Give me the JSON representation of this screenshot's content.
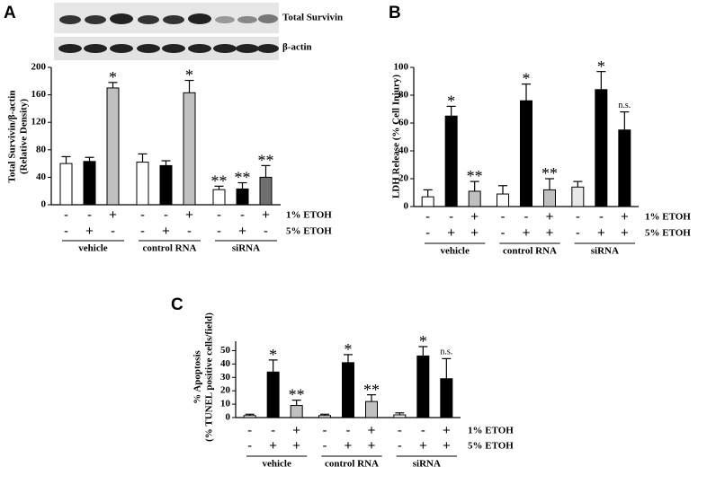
{
  "chart_data": [
    {
      "type": "bar",
      "panel_label": "A",
      "blot_labels": [
        "Total Survivin",
        "β-actin"
      ],
      "y_label": [
        "Total Survivin/β-actin",
        "(Relative Density)"
      ],
      "groups": [
        "vehicle",
        "control RNA",
        "siRNA"
      ],
      "values": [
        60,
        63,
        170,
        62,
        57,
        163,
        22,
        23,
        40
      ],
      "errors": [
        10,
        6,
        8,
        12,
        7,
        18,
        5,
        9,
        17
      ],
      "colors": [
        "#ffffff",
        "#000000",
        "#c0c0c0",
        "#ffffff",
        "#000000",
        "#c0c0c0",
        "#ffffff",
        "#000000",
        "#707070"
      ],
      "annotations": [
        null,
        null,
        "*",
        null,
        null,
        "*",
        "**",
        "**",
        "**"
      ],
      "rows": [
        {
          "name": "1% ETOH",
          "signs": [
            "-",
            "-",
            "+",
            "-",
            "-",
            "+",
            "-",
            "-",
            "+"
          ]
        },
        {
          "name": "5% ETOH",
          "signs": [
            "-",
            "+",
            "-",
            "-",
            "+",
            "-",
            "-",
            "+",
            "-"
          ]
        }
      ],
      "ylim": [
        0,
        200
      ],
      "yticks": [
        0,
        40,
        80,
        120,
        160,
        200
      ]
    },
    {
      "type": "bar",
      "panel_label": "B",
      "y_label": [
        "LDH Release (% Cell Injury)"
      ],
      "groups": [
        "vehicle",
        "control RNA",
        "siRNA"
      ],
      "values": [
        7,
        65,
        11,
        9,
        76,
        12,
        14,
        84,
        55
      ],
      "errors": [
        5,
        7,
        7,
        6,
        12,
        8,
        4,
        13,
        13
      ],
      "colors": [
        "#ffffff",
        "#000000",
        "#c0c0c0",
        "#ffffff",
        "#000000",
        "#c0c0c0",
        "#e8e8e8",
        "#000000",
        "#000000"
      ],
      "annotations": [
        null,
        "*",
        "**",
        null,
        "*",
        "**",
        null,
        "*",
        "n.s."
      ],
      "rows": [
        {
          "name": "1% ETOH",
          "signs": [
            "-",
            "-",
            "+",
            "-",
            "-",
            "+",
            "-",
            "-",
            "+"
          ]
        },
        {
          "name": "5% ETOH",
          "signs": [
            "-",
            "+",
            "+",
            "-",
            "+",
            "+",
            "-",
            "+",
            "+"
          ]
        }
      ],
      "ylim": [
        0,
        100
      ],
      "yticks": [
        0,
        20,
        40,
        60,
        80,
        100
      ]
    },
    {
      "type": "bar",
      "panel_label": "C",
      "y_label": [
        "% Apoptosis",
        "(% TUNEL positive cells/field)"
      ],
      "groups": [
        "vehicle",
        "control RNA",
        "siRNA"
      ],
      "values": [
        1.5,
        34,
        9,
        1.5,
        41,
        12,
        2,
        46,
        29
      ],
      "errors": [
        1,
        9,
        4,
        1,
        6,
        5,
        1.5,
        7,
        15
      ],
      "colors": [
        "#ffffff",
        "#000000",
        "#c0c0c0",
        "#ffffff",
        "#000000",
        "#c0c0c0",
        "#ffffff",
        "#000000",
        "#000000"
      ],
      "annotations": [
        null,
        "*",
        "**",
        null,
        "*",
        "**",
        null,
        "*",
        "n.s."
      ],
      "rows": [
        {
          "name": "1% ETOH",
          "signs": [
            "-",
            "-",
            "+",
            "-",
            "-",
            "+",
            "-",
            "-",
            "+"
          ]
        },
        {
          "name": "5% ETOH",
          "signs": [
            "-",
            "+",
            "+",
            "-",
            "+",
            "+",
            "-",
            "+",
            "+"
          ]
        }
      ],
      "ylim": [
        0,
        57
      ],
      "yticks": [
        0,
        10,
        20,
        30,
        40,
        50
      ]
    }
  ]
}
